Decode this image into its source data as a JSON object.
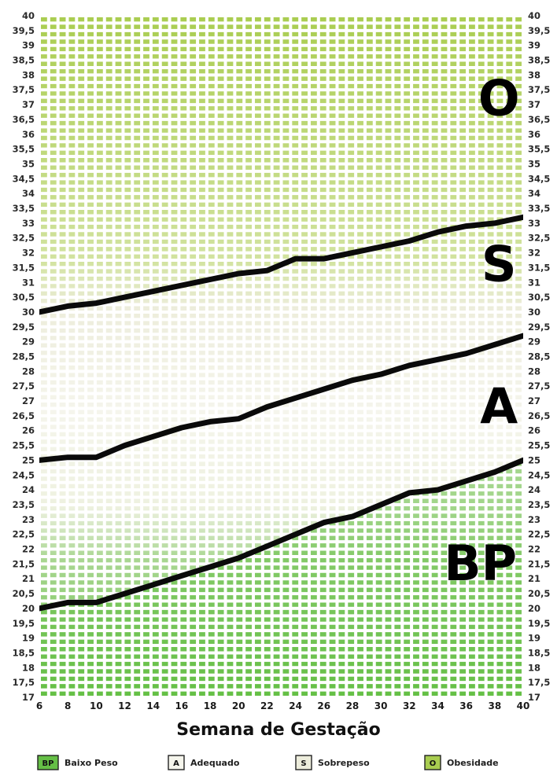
{
  "chart_data": {
    "type": "area",
    "title": "",
    "xlabel": "Semana de Gestação",
    "ylabel": "",
    "xlim": [
      6,
      40
    ],
    "ylim": [
      17,
      40
    ],
    "x_ticks": [
      "6",
      "8",
      "10",
      "12",
      "14",
      "16",
      "18",
      "20",
      "22",
      "24",
      "26",
      "28",
      "30",
      "32",
      "34",
      "36",
      "38",
      "40"
    ],
    "y_ticks": [
      "17",
      "17,5",
      "18",
      "18,5",
      "19",
      "19,5",
      "20",
      "20,5",
      "21",
      "21,5",
      "22",
      "22,5",
      "23",
      "23,5",
      "24",
      "24,5",
      "25",
      "25,5",
      "26",
      "26,5",
      "27",
      "27,5",
      "28",
      "28,5",
      "29",
      "29,5",
      "30",
      "30,5",
      "31",
      "31,5",
      "32",
      "32,5",
      "33",
      "33,5",
      "34",
      "34,5",
      "35",
      "35,5",
      "36",
      "36,5",
      "37",
      "37,5",
      "38",
      "38,5",
      "39",
      "39,5",
      "40"
    ],
    "grid": true,
    "legend_position": "bottom",
    "series": [
      {
        "code": "BP-A",
        "x": [
          6,
          8,
          10,
          12,
          14,
          16,
          18,
          20,
          22,
          24,
          26,
          28,
          30,
          32,
          34,
          36,
          38,
          40
        ],
        "values": [
          20.0,
          20.2,
          20.2,
          20.5,
          20.8,
          21.1,
          21.4,
          21.7,
          22.1,
          22.5,
          22.9,
          23.1,
          23.5,
          23.9,
          24.0,
          24.3,
          24.6,
          25.0
        ]
      },
      {
        "code": "A-S",
        "x": [
          6,
          8,
          10,
          12,
          14,
          16,
          18,
          20,
          22,
          24,
          26,
          28,
          30,
          32,
          34,
          36,
          38,
          40
        ],
        "values": [
          25.0,
          25.1,
          25.1,
          25.5,
          25.8,
          26.1,
          26.3,
          26.4,
          26.8,
          27.1,
          27.4,
          27.7,
          27.9,
          28.2,
          28.4,
          28.6,
          28.9,
          29.2
        ]
      },
      {
        "code": "S-O",
        "x": [
          6,
          8,
          10,
          12,
          14,
          16,
          18,
          20,
          22,
          24,
          26,
          28,
          30,
          32,
          34,
          36,
          38,
          40
        ],
        "values": [
          30.0,
          30.2,
          30.3,
          30.5,
          30.7,
          30.9,
          31.1,
          31.3,
          31.4,
          31.8,
          31.8,
          32.0,
          32.2,
          32.4,
          32.7,
          32.9,
          33.0,
          33.2
        ]
      }
    ],
    "zones": [
      {
        "code": "BP",
        "label": "Baixo Peso",
        "color": "#65bf46",
        "text_x": 37,
        "text_y": 21.4
      },
      {
        "code": "A",
        "label": "Adequado",
        "color": "#f5f5ec",
        "text_x": 38.3,
        "text_y": 26.7
      },
      {
        "code": "S",
        "label": "Sobrepeso",
        "color": "#ededdc",
        "text_x": 38.3,
        "text_y": 31.5
      },
      {
        "code": "O",
        "label": "Obesidade",
        "color": "#a9cd50",
        "text_x": 38.3,
        "text_y": 37.1
      }
    ],
    "colors": {
      "line": "#0a0a0a",
      "grid_gap": "#ffffff"
    }
  }
}
